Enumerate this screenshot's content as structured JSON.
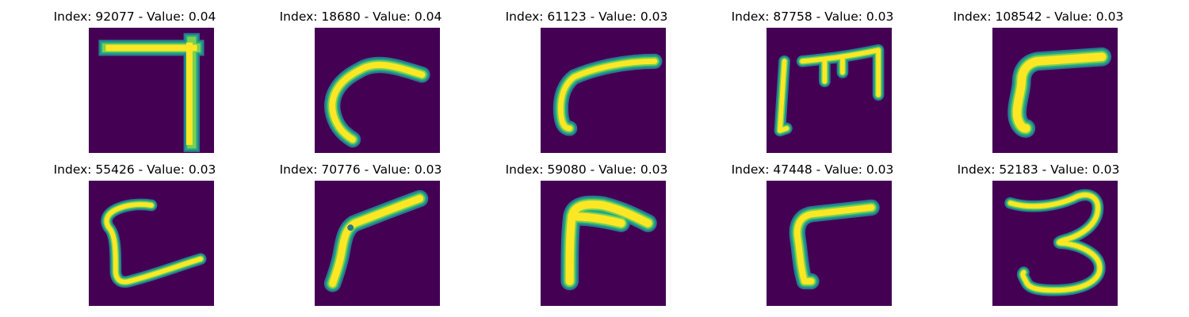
{
  "panels": [
    {
      "title": "Index: 92077 - Value: 0.04",
      "index": 92077,
      "value": 0.04,
      "depicted": "7"
    },
    {
      "title": "Index: 18680 - Value: 0.04",
      "index": 18680,
      "value": 0.04,
      "depicted": "c-stroke"
    },
    {
      "title": "Index: 61123 - Value: 0.03",
      "index": 61123,
      "value": 0.03,
      "depicted": "r-stroke"
    },
    {
      "title": "Index: 87758 - Value: 0.03",
      "index": 87758,
      "value": 0.03,
      "depicted": "m-stroke"
    },
    {
      "title": "Index: 108542 - Value: 0.03",
      "index": 108542,
      "value": 0.03,
      "depicted": "r-stroke"
    },
    {
      "title": "Index: 55426 - Value: 0.03",
      "index": 55426,
      "value": 0.03,
      "depicted": "c-stroke"
    },
    {
      "title": "Index: 70776 - Value: 0.03",
      "index": 70776,
      "value": 0.03,
      "depicted": "r-stroke"
    },
    {
      "title": "Index: 59080 - Value: 0.03",
      "index": 59080,
      "value": 0.03,
      "depicted": "r-stroke"
    },
    {
      "title": "Index: 47448 - Value: 0.03",
      "index": 47448,
      "value": 0.03,
      "depicted": "r-stroke"
    },
    {
      "title": "Index: 52183 - Value: 0.03",
      "index": 52183,
      "value": 0.03,
      "depicted": "3"
    }
  ],
  "colors": {
    "background": "#440154",
    "stroke_core": "#fde725",
    "stroke_mid": "#7ad151",
    "stroke_edge": "#22a884",
    "stroke_outer": "#2a788e"
  }
}
